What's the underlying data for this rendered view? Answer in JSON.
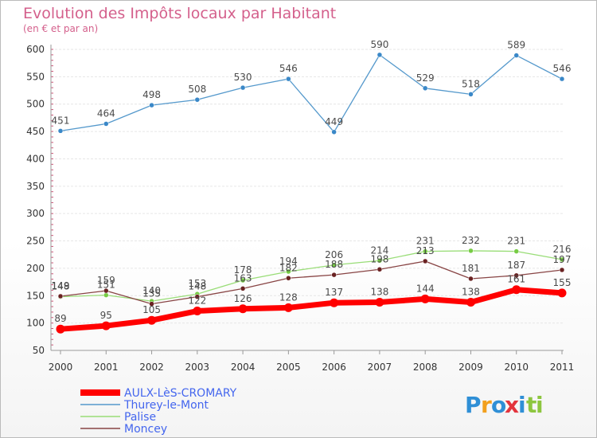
{
  "chart_data": {
    "type": "line",
    "title": "Evolution des Impôts locaux par Habitant",
    "subtitle": "(en € et par an)",
    "categories": [
      "2000",
      "2001",
      "2002",
      "2003",
      "2004",
      "2005",
      "2006",
      "2007",
      "2008",
      "2009",
      "2010",
      "2011"
    ],
    "ylim": [
      50,
      600
    ],
    "yticks": [
      50,
      100,
      150,
      200,
      250,
      300,
      350,
      400,
      450,
      500,
      550,
      600
    ],
    "grid": true,
    "legend_position": "bottom-left",
    "series": [
      {
        "name": "Thurey-le-Mont",
        "color": "#5599cc",
        "marker": "#3a88c8",
        "width": 1.3,
        "label_pos": "above",
        "values": [
          451,
          464,
          498,
          508,
          530,
          546,
          449,
          590,
          529,
          518,
          589,
          546
        ]
      },
      {
        "name": "Palise",
        "color": "#99dd77",
        "marker": "#77cc44",
        "width": 1.3,
        "label_pos": "above",
        "values": [
          148,
          151,
          140,
          153,
          178,
          194,
          206,
          214,
          231,
          232,
          231,
          216
        ]
      },
      {
        "name": "Moncey",
        "color": "#884444",
        "marker": "#6a2222",
        "width": 1.3,
        "label_pos": "above",
        "values": [
          149,
          159,
          135,
          148,
          163,
          182,
          188,
          198,
          213,
          181,
          187,
          197
        ]
      },
      {
        "name": "AULX-LèS-CROMARY",
        "color": "#ff0000",
        "marker": "#ff0000",
        "width": 7,
        "label_pos": "above",
        "values": [
          89,
          95,
          105,
          122,
          126,
          128,
          137,
          138,
          144,
          138,
          161,
          155
        ]
      }
    ],
    "legend_order": [
      "AULX-LèS-CROMARY",
      "Thurey-le-Mont",
      "Palise",
      "Moncey"
    ]
  },
  "brand": {
    "letters": [
      "P",
      "r",
      "o",
      "x",
      "i",
      "t",
      "i"
    ],
    "colors": [
      "#2f8fd6",
      "#f2a01e",
      "#2f8fd6",
      "#e3343d",
      "#2f8fd6",
      "#8dc63f",
      "#8dc63f"
    ]
  }
}
